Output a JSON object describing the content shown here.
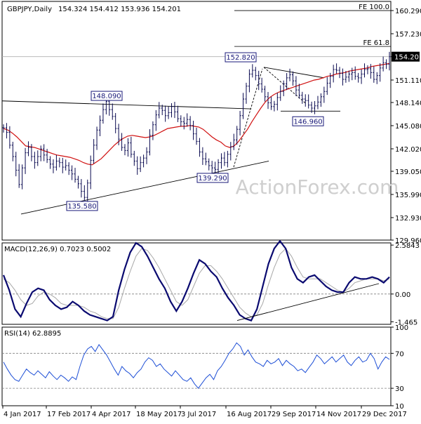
{
  "chart_data": {
    "type": "line",
    "title": "GBPJPY,Daily",
    "ohlc_readout": "154.324 154.412 153.936 154.201",
    "watermark": "ActionForex.com",
    "last_price_label": "154.201",
    "x_ticks": [
      "4 Jan 2017",
      "17 Feb 2017",
      "4 Apr 2017",
      "18 May 2017",
      "3 Jul 2017",
      "16 Aug 2017",
      "29 Sep 2017",
      "14 Nov 2017",
      "29 Dec 2017"
    ],
    "price_panel": {
      "ylim": [
        129.96,
        161.5
      ],
      "y_ticks": [
        160.29,
        157.23,
        154.201,
        151.11,
        148.14,
        145.08,
        142.02,
        139.05,
        135.99,
        132.93,
        129.96
      ],
      "y_tick_labels": [
        "160.290",
        "157.230",
        "154.201",
        "151.110",
        "148.140",
        "145.080",
        "142.020",
        "139.050",
        "135.990",
        "132.930",
        "129.960"
      ],
      "price": [
        144.8,
        144.2,
        142.5,
        141.0,
        139.2,
        137.3,
        139.5,
        141.5,
        142.2,
        141.0,
        140.2,
        141.0,
        142.0,
        141.2,
        140.6,
        140.0,
        139.6,
        140.4,
        140.2,
        139.6,
        139.8,
        139.2,
        138.7,
        138.0,
        137.4,
        136.4,
        135.6,
        137.5,
        140.5,
        142.5,
        144.5,
        145.8,
        147.2,
        148.3,
        147.2,
        146.3,
        144.7,
        143.3,
        142.2,
        141.8,
        142.8,
        141.3,
        140.4,
        139.4,
        140.2,
        140.8,
        141.6,
        143.8,
        145.2,
        146.5,
        147.4,
        147.1,
        146.4,
        146.8,
        147.6,
        146.9,
        146.0,
        145.6,
        145.4,
        145.9,
        145.1,
        144.0,
        143.0,
        141.6,
        140.7,
        140.3,
        139.8,
        139.5,
        139.3,
        140.2,
        140.8,
        140.2,
        141.3,
        142.3,
        143.2,
        144.6,
        146.4,
        148.6,
        150.3,
        151.9,
        152.4,
        151.7,
        150.6,
        149.9,
        148.9,
        148.1,
        147.6,
        147.9,
        148.8,
        149.6,
        150.6,
        151.4,
        151.8,
        151.0,
        149.8,
        149.1,
        148.6,
        148.4,
        147.8,
        147.4,
        147.7,
        148.2,
        148.9,
        149.6,
        150.7,
        151.6,
        152.5,
        152.4,
        152.0,
        151.2,
        151.5,
        151.9,
        152.1,
        151.6,
        151.4,
        151.9,
        152.5,
        152.6,
        152.1,
        151.2,
        151.7,
        152.7,
        153.4,
        153.2,
        154.2
      ],
      "ma": [
        144.7,
        144.5,
        144.1,
        143.6,
        143.0,
        142.4,
        142.3,
        142.2,
        142.0,
        141.8,
        141.6,
        141.4,
        141.2,
        141.1,
        141.0,
        140.9,
        140.7,
        140.5,
        140.2,
        140.0,
        139.9,
        140.3,
        140.7,
        141.3,
        141.9,
        142.5,
        143.0,
        143.4,
        143.7,
        143.8,
        143.7,
        143.6,
        143.5,
        143.6,
        143.8,
        144.1,
        144.4,
        144.7,
        144.8,
        144.9,
        145.0,
        145.0,
        145.1,
        145.0,
        144.9,
        144.6,
        144.1,
        143.6,
        143.2,
        142.9,
        142.4,
        142.2,
        142.4,
        143.0,
        143.8,
        144.6,
        145.6,
        146.5,
        147.4,
        148.2,
        148.8,
        149.2,
        149.5,
        149.7,
        149.9,
        150.1,
        150.3,
        150.5,
        150.7,
        150.9,
        151.1,
        151.2,
        151.4,
        151.6,
        151.7,
        151.9,
        152.0,
        152.1,
        152.3,
        152.4,
        152.5,
        152.6,
        152.7,
        152.9,
        153.0,
        153.1,
        153.2,
        153.3
      ],
      "annotations": [
        {
          "label": "152.820",
          "value": 152.82
        },
        {
          "label": "148.090",
          "value": 148.09
        },
        {
          "label": "146.960",
          "value": 146.96
        },
        {
          "label": "139.290",
          "value": 139.29
        },
        {
          "label": "135.580",
          "value": 135.58
        }
      ],
      "fib_levels": [
        {
          "label": "FE 100.0",
          "value": 160.29
        },
        {
          "label": "FE 61.8",
          "value": 155.55
        }
      ]
    },
    "macd_panel": {
      "title": "MACD(12,26,9) 0.7023 0.5002",
      "ylim": [
        -1.6,
        2.7
      ],
      "y_ticks": [
        2.5843,
        0.0,
        -1.465
      ],
      "y_tick_labels": [
        "2.5843",
        "0.00",
        "-1.465"
      ],
      "macd": [
        1.0,
        0.2,
        -0.8,
        -1.2,
        -0.5,
        0.1,
        0.3,
        0.2,
        -0.3,
        -0.6,
        -0.8,
        -0.7,
        -0.4,
        -0.6,
        -0.9,
        -1.1,
        -1.2,
        -1.3,
        -1.4,
        -1.2,
        0.2,
        1.3,
        2.2,
        2.7,
        2.5,
        2.0,
        1.4,
        0.8,
        0.3,
        -0.4,
        -0.9,
        -0.4,
        0.3,
        1.1,
        1.8,
        1.6,
        1.2,
        0.9,
        0.3,
        -0.2,
        -0.6,
        -1.1,
        -1.3,
        -1.4,
        -0.8,
        0.4,
        1.6,
        2.4,
        2.8,
        2.4,
        1.4,
        0.8,
        0.6,
        0.9,
        1.0,
        0.7,
        0.4,
        0.2,
        0.1,
        0.1,
        0.6,
        0.9,
        0.8,
        0.8,
        0.9,
        0.8,
        0.6,
        0.9
      ],
      "signal": [
        0.8,
        0.6,
        0.2,
        -0.3,
        -0.6,
        -0.5,
        -0.1,
        0.1,
        0.0,
        -0.2,
        -0.5,
        -0.6,
        -0.6,
        -0.6,
        -0.7,
        -0.9,
        -1.0,
        -1.2,
        -1.3,
        -1.3,
        -0.7,
        0.3,
        1.2,
        2.0,
        2.4,
        2.3,
        1.9,
        1.4,
        0.8,
        0.2,
        -0.4,
        -0.6,
        -0.3,
        0.4,
        1.1,
        1.5,
        1.5,
        1.2,
        0.8,
        0.3,
        -0.2,
        -0.7,
        -1.0,
        -1.2,
        -1.1,
        -0.5,
        0.5,
        1.4,
        2.1,
        2.4,
        2.0,
        1.4,
        0.9,
        0.8,
        0.8,
        0.8,
        0.6,
        0.4,
        0.2,
        0.1,
        0.3,
        0.6,
        0.7,
        0.8,
        0.8,
        0.8,
        0.7,
        0.8
      ]
    },
    "rsi_panel": {
      "title": "RSI(14) 62.8895",
      "ylim": [
        10,
        100
      ],
      "y_ticks": [
        100,
        70,
        30,
        10
      ],
      "y_tick_labels": [
        "100",
        "70",
        "30",
        "10"
      ],
      "rsi": [
        60,
        52,
        45,
        40,
        38,
        45,
        52,
        48,
        45,
        50,
        46,
        42,
        49,
        44,
        40,
        45,
        42,
        38,
        43,
        40,
        55,
        68,
        75,
        78,
        72,
        80,
        74,
        68,
        60,
        52,
        45,
        55,
        50,
        47,
        42,
        48,
        52,
        60,
        65,
        62,
        55,
        58,
        52,
        48,
        44,
        50,
        45,
        40,
        38,
        42,
        35,
        30,
        36,
        42,
        46,
        40,
        50,
        55,
        62,
        70,
        75,
        82,
        78,
        68,
        74,
        66,
        60,
        58,
        55,
        62,
        58,
        60,
        64,
        56,
        62,
        58,
        55,
        50,
        52,
        48,
        54,
        60,
        68,
        64,
        58,
        62,
        66,
        60,
        64,
        68,
        60,
        56,
        62,
        66,
        60,
        62,
        70,
        64,
        52,
        60,
        66,
        63
      ]
    }
  }
}
